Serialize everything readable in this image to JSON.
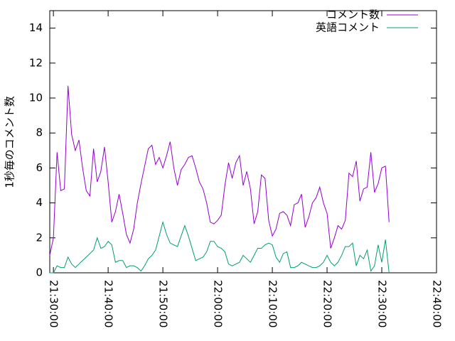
{
  "chart_data": {
    "type": "line",
    "ylabel": "1秒毎のコメント数",
    "xlim": [
      "21:29:20",
      "22:40:00"
    ],
    "xticks": [
      "21:30:00",
      "21:40:00",
      "21:50:00",
      "22:00:00",
      "22:10:00",
      "22:20:00",
      "22:30:00",
      "22:40:00"
    ],
    "ylim": [
      0,
      15
    ],
    "yticks": [
      0,
      2,
      4,
      6,
      8,
      10,
      12,
      14
    ],
    "legend": "top-right",
    "x": [
      "21:29:20",
      "21:30:00",
      "21:30:40",
      "21:31:20",
      "21:32:00",
      "21:32:40",
      "21:33:20",
      "21:34:00",
      "21:34:40",
      "21:35:20",
      "21:36:00",
      "21:36:40",
      "21:37:20",
      "21:38:00",
      "21:38:40",
      "21:39:20",
      "21:40:00",
      "21:40:40",
      "21:41:20",
      "21:42:00",
      "21:42:40",
      "21:43:20",
      "21:44:00",
      "21:44:40",
      "21:45:20",
      "21:46:00",
      "21:46:40",
      "21:47:20",
      "21:48:00",
      "21:48:40",
      "21:49:20",
      "21:50:00",
      "21:50:40",
      "21:51:20",
      "21:52:00",
      "21:52:40",
      "21:53:20",
      "21:54:00",
      "21:54:40",
      "21:55:20",
      "21:56:00",
      "21:56:40",
      "21:57:20",
      "21:58:00",
      "21:58:40",
      "21:59:20",
      "22:00:00",
      "22:00:40",
      "22:01:20",
      "22:02:00",
      "22:02:40",
      "22:03:20",
      "22:04:00",
      "22:04:40",
      "22:05:20",
      "22:06:00",
      "22:06:40",
      "22:07:20",
      "22:08:00",
      "22:08:40",
      "22:09:20",
      "22:10:00",
      "22:10:40",
      "22:11:20",
      "22:12:00",
      "22:12:40",
      "22:13:20",
      "22:14:00",
      "22:14:40",
      "22:15:20",
      "22:16:00",
      "22:16:40",
      "22:17:20",
      "22:18:00",
      "22:18:40",
      "22:19:20",
      "22:20:00",
      "22:20:40",
      "22:21:20",
      "22:22:00",
      "22:22:40",
      "22:23:20",
      "22:24:00",
      "22:24:40",
      "22:25:20",
      "22:26:00",
      "22:26:40",
      "22:27:20",
      "22:28:00",
      "22:28:40",
      "22:29:20",
      "22:30:00",
      "22:30:40",
      "22:31:20"
    ],
    "series": [
      {
        "name": "コメント数",
        "color": "#9400d3",
        "values": [
          1.0,
          2.0,
          6.9,
          4.7,
          4.8,
          10.7,
          7.9,
          7.0,
          7.6,
          6.0,
          4.7,
          4.4,
          7.1,
          5.2,
          5.8,
          7.2,
          5.2,
          2.9,
          3.5,
          4.5,
          3.4,
          2.2,
          1.7,
          2.5,
          4.0,
          5.1,
          6.1,
          7.1,
          7.3,
          6.2,
          6.6,
          6.0,
          6.7,
          7.5,
          6.0,
          5.0,
          5.9,
          6.2,
          6.6,
          6.7,
          6.0,
          5.2,
          4.8,
          4.0,
          2.9,
          2.8,
          3.0,
          3.3,
          5.0,
          6.3,
          5.4,
          6.3,
          6.7,
          5.0,
          5.8,
          4.8,
          2.8,
          3.5,
          5.6,
          5.4,
          3.0,
          2.1,
          2.5,
          3.4,
          3.5,
          3.3,
          2.7,
          3.9,
          4.0,
          4.5,
          2.6,
          3.2,
          4.0,
          4.3,
          4.9,
          4.0,
          3.4,
          1.4,
          2.0,
          2.7,
          2.5,
          3.0,
          5.7,
          5.5,
          6.4,
          4.1,
          4.8,
          4.9,
          6.9,
          4.6,
          5.1,
          6.0,
          6.1,
          2.9
        ]
      },
      {
        "name": "英語コメント",
        "color": "#009e73",
        "values": [
          0,
          0,
          0.4,
          0.3,
          0.3,
          0.9,
          0.5,
          0.3,
          0.5,
          0.7,
          0.9,
          1.1,
          1.3,
          2.0,
          1.4,
          1.5,
          1.8,
          1.6,
          0.6,
          0.7,
          0.7,
          0.3,
          0.4,
          0.4,
          0.3,
          0.1,
          0.4,
          0.8,
          1.0,
          1.3,
          2.1,
          2.9,
          2.2,
          1.7,
          1.6,
          1.5,
          2.1,
          2.7,
          2.1,
          1.4,
          0.7,
          0.8,
          0.9,
          1.2,
          1.8,
          1.8,
          1.5,
          1.4,
          1.2,
          0.5,
          0.4,
          0.5,
          0.6,
          1.0,
          0.8,
          0.6,
          1.0,
          1.4,
          1.4,
          1.6,
          1.7,
          1.6,
          0.9,
          0.6,
          1.1,
          1.2,
          0.3,
          0.3,
          0.4,
          0.6,
          0.5,
          0.4,
          0.3,
          0.3,
          0.4,
          0.6,
          1.0,
          0.6,
          0.4,
          0.6,
          1.0,
          1.5,
          1.5,
          1.7,
          0.4,
          1.0,
          0.8,
          1.3,
          0.1,
          0.4,
          1.6,
          0.6,
          1.9,
          0
        ]
      }
    ]
  }
}
